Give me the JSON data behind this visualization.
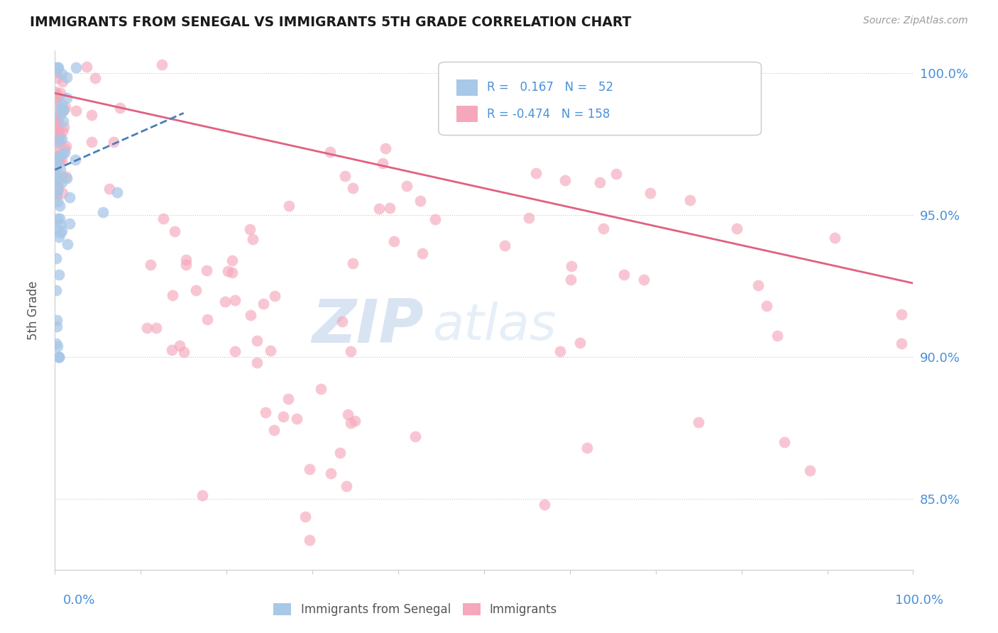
{
  "title": "IMMIGRANTS FROM SENEGAL VS IMMIGRANTS 5TH GRADE CORRELATION CHART",
  "source": "Source: ZipAtlas.com",
  "ylabel": "5th Grade",
  "right_yticks": [
    0.85,
    0.9,
    0.95,
    1.0
  ],
  "right_yticklabels": [
    "85.0%",
    "90.0%",
    "95.0%",
    "100.0%"
  ],
  "legend_blue_r": "0.167",
  "legend_blue_n": "52",
  "legend_pink_r": "-0.474",
  "legend_pink_n": "158",
  "blue_color": "#a8c8e8",
  "pink_color": "#f5a8bc",
  "blue_line_color": "#4a7eb8",
  "pink_line_color": "#e06080",
  "watermark_zip": "ZIP",
  "watermark_atlas": "atlas",
  "grid_color": "#c8c8c8",
  "title_color": "#1a1a1a",
  "axis_label_color": "#4a90d9",
  "background": "#ffffff",
  "ylim_min": 0.825,
  "ylim_max": 1.008,
  "xlim_min": 0.0,
  "xlim_max": 1.0,
  "pink_line_x0": 0.0,
  "pink_line_y0": 0.993,
  "pink_line_x1": 1.0,
  "pink_line_y1": 0.926,
  "blue_line_x0": 0.0,
  "blue_line_y0": 0.966,
  "blue_line_x1": 0.15,
  "blue_line_y1": 0.986
}
